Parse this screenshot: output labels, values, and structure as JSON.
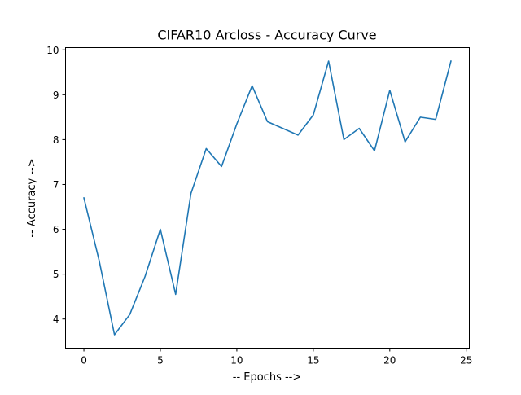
{
  "chart_data": {
    "type": "line",
    "title": "CIFAR10 Arcloss - Accuracy Curve",
    "xlabel": "-- Epochs -->",
    "ylabel": "-- Accuracy -->",
    "xlim": [
      -1.2,
      25.2
    ],
    "ylim": [
      3.35,
      10.05
    ],
    "x_ticks": [
      0,
      5,
      10,
      15,
      20,
      25
    ],
    "y_ticks": [
      4,
      5,
      6,
      7,
      8,
      9,
      10
    ],
    "grid": false,
    "line_color": "#1f77b4",
    "series": [
      {
        "x": [
          0,
          1,
          2,
          3,
          4,
          5,
          6,
          7,
          8,
          9,
          10,
          11,
          12,
          13,
          14,
          15,
          16,
          17,
          18,
          19,
          20,
          21,
          22,
          23,
          24
        ],
        "values": [
          6.7,
          5.3,
          3.65,
          4.1,
          4.95,
          6.0,
          4.55,
          6.8,
          7.8,
          7.4,
          8.35,
          9.2,
          8.4,
          8.25,
          8.1,
          8.55,
          9.75,
          8.0,
          8.25,
          7.75,
          9.1,
          7.95,
          8.5,
          8.45,
          9.75
        ]
      }
    ]
  }
}
